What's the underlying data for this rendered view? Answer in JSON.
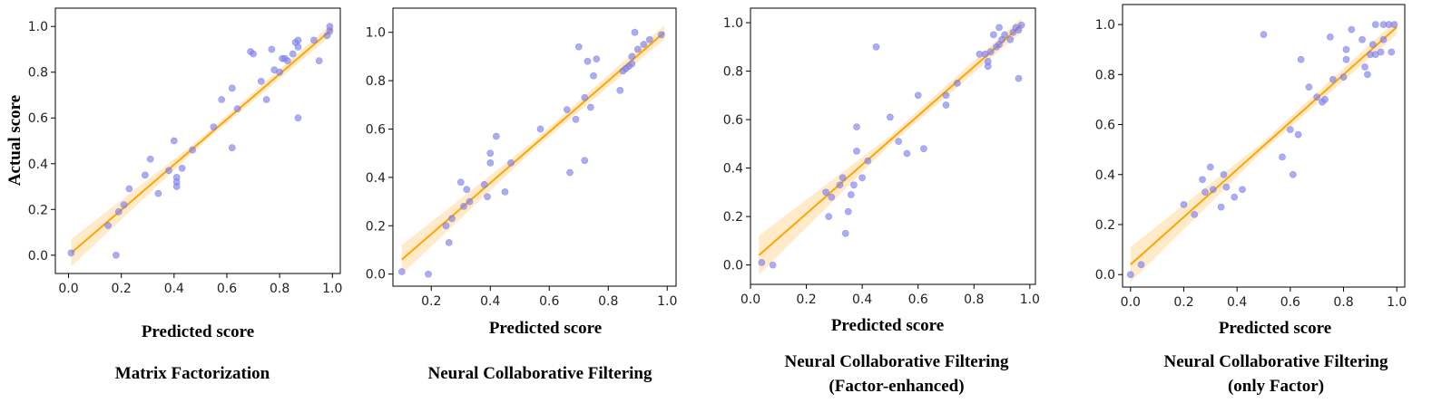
{
  "chart_data": [
    {
      "type": "scatter",
      "xlabel": "Predicted score",
      "ylabel": "Actual score",
      "caption": [
        "Matrix Factorization"
      ],
      "xlim": [
        -0.05,
        1.03
      ],
      "ylim": [
        -0.08,
        1.08
      ],
      "xticks": [
        "0.0",
        "0.2",
        "0.4",
        "0.6",
        "0.8",
        "1.0"
      ],
      "xtick_values": [
        0.0,
        0.2,
        0.4,
        0.6,
        0.8,
        1.0
      ],
      "yticks": [
        "0.0",
        "0.2",
        "0.4",
        "0.6",
        "0.8",
        "1.0"
      ],
      "ytick_values": [
        0.0,
        0.2,
        0.4,
        0.6,
        0.8,
        1.0
      ],
      "fit": {
        "x": [
          0.01,
          1.0
        ],
        "y": [
          0.01,
          0.99
        ],
        "band_low": 0.06,
        "band_high": 0.025
      },
      "points": [
        [
          0.01,
          0.01
        ],
        [
          0.15,
          0.13
        ],
        [
          0.18,
          0.0
        ],
        [
          0.19,
          0.19
        ],
        [
          0.21,
          0.22
        ],
        [
          0.23,
          0.29
        ],
        [
          0.29,
          0.35
        ],
        [
          0.31,
          0.42
        ],
        [
          0.34,
          0.27
        ],
        [
          0.38,
          0.37
        ],
        [
          0.4,
          0.5
        ],
        [
          0.41,
          0.34
        ],
        [
          0.41,
          0.32
        ],
        [
          0.41,
          0.3
        ],
        [
          0.43,
          0.38
        ],
        [
          0.47,
          0.46
        ],
        [
          0.55,
          0.56
        ],
        [
          0.58,
          0.68
        ],
        [
          0.62,
          0.73
        ],
        [
          0.62,
          0.47
        ],
        [
          0.64,
          0.64
        ],
        [
          0.69,
          0.89
        ],
        [
          0.7,
          0.88
        ],
        [
          0.73,
          0.76
        ],
        [
          0.75,
          0.68
        ],
        [
          0.77,
          0.9
        ],
        [
          0.78,
          0.81
        ],
        [
          0.8,
          0.8
        ],
        [
          0.81,
          0.86
        ],
        [
          0.82,
          0.86
        ],
        [
          0.83,
          0.85
        ],
        [
          0.85,
          0.88
        ],
        [
          0.86,
          0.93
        ],
        [
          0.87,
          0.94
        ],
        [
          0.87,
          0.91
        ],
        [
          0.87,
          0.6
        ],
        [
          0.93,
          0.94
        ],
        [
          0.95,
          0.85
        ],
        [
          0.98,
          0.96
        ],
        [
          0.99,
          0.98
        ],
        [
          0.99,
          1.0
        ]
      ]
    },
    {
      "type": "scatter",
      "xlabel": "Predicted score",
      "ylabel": "",
      "caption": [
        "Neural Collaborative Filtering"
      ],
      "xlim": [
        0.07,
        1.03
      ],
      "ylim": [
        -0.05,
        1.1
      ],
      "xticks": [
        "0.2",
        "0.4",
        "0.6",
        "0.8",
        "1.0"
      ],
      "xtick_values": [
        0.2,
        0.4,
        0.6,
        0.8,
        1.0
      ],
      "yticks": [
        "0.0",
        "0.2",
        "0.4",
        "0.6",
        "0.8",
        "1.0"
      ],
      "ytick_values": [
        0.0,
        0.2,
        0.4,
        0.6,
        0.8,
        1.0
      ],
      "fit": {
        "x": [
          0.1,
          0.99
        ],
        "y": [
          0.06,
          1.0
        ],
        "band_low": 0.06,
        "band_high": 0.03
      },
      "points": [
        [
          0.1,
          0.01
        ],
        [
          0.19,
          0.0
        ],
        [
          0.25,
          0.2
        ],
        [
          0.26,
          0.13
        ],
        [
          0.27,
          0.23
        ],
        [
          0.3,
          0.38
        ],
        [
          0.31,
          0.28
        ],
        [
          0.32,
          0.35
        ],
        [
          0.33,
          0.3
        ],
        [
          0.38,
          0.37
        ],
        [
          0.39,
          0.32
        ],
        [
          0.4,
          0.5
        ],
        [
          0.4,
          0.46
        ],
        [
          0.42,
          0.57
        ],
        [
          0.45,
          0.34
        ],
        [
          0.47,
          0.46
        ],
        [
          0.57,
          0.6
        ],
        [
          0.66,
          0.68
        ],
        [
          0.67,
          0.42
        ],
        [
          0.69,
          0.64
        ],
        [
          0.7,
          0.94
        ],
        [
          0.72,
          0.73
        ],
        [
          0.72,
          0.47
        ],
        [
          0.73,
          0.88
        ],
        [
          0.74,
          0.69
        ],
        [
          0.75,
          0.82
        ],
        [
          0.76,
          0.89
        ],
        [
          0.84,
          0.76
        ],
        [
          0.85,
          0.84
        ],
        [
          0.86,
          0.85
        ],
        [
          0.87,
          0.86
        ],
        [
          0.88,
          0.9
        ],
        [
          0.88,
          0.87
        ],
        [
          0.89,
          1.0
        ],
        [
          0.9,
          0.93
        ],
        [
          0.92,
          0.95
        ],
        [
          0.94,
          0.97
        ],
        [
          0.98,
          0.99
        ]
      ]
    },
    {
      "type": "scatter",
      "xlabel": "Predicted score",
      "ylabel": "",
      "caption": [
        "Neural Collaborative Filtering",
        "(Factor-enhanced)"
      ],
      "xlim": [
        0.0,
        1.02
      ],
      "ylim": [
        -0.08,
        1.06
      ],
      "xticks": [
        "0.0",
        "0.2",
        "0.4",
        "0.6",
        "0.8",
        "1.0"
      ],
      "xtick_values": [
        0.0,
        0.2,
        0.4,
        0.6,
        0.8,
        1.0
      ],
      "yticks": [
        "0.0",
        "0.2",
        "0.4",
        "0.6",
        "0.8",
        "1.0"
      ],
      "ytick_values": [
        0.0,
        0.2,
        0.4,
        0.6,
        0.8,
        1.0
      ],
      "fit": {
        "x": [
          0.03,
          0.97
        ],
        "y": [
          0.04,
          0.99
        ],
        "band_low": 0.08,
        "band_high": 0.03
      },
      "points": [
        [
          0.04,
          0.01
        ],
        [
          0.08,
          0.0
        ],
        [
          0.27,
          0.3
        ],
        [
          0.28,
          0.2
        ],
        [
          0.29,
          0.28
        ],
        [
          0.32,
          0.33
        ],
        [
          0.33,
          0.36
        ],
        [
          0.34,
          0.13
        ],
        [
          0.35,
          0.22
        ],
        [
          0.36,
          0.29
        ],
        [
          0.37,
          0.33
        ],
        [
          0.38,
          0.47
        ],
        [
          0.38,
          0.57
        ],
        [
          0.4,
          0.36
        ],
        [
          0.42,
          0.43
        ],
        [
          0.45,
          0.9
        ],
        [
          0.5,
          0.61
        ],
        [
          0.53,
          0.51
        ],
        [
          0.56,
          0.46
        ],
        [
          0.6,
          0.7
        ],
        [
          0.62,
          0.48
        ],
        [
          0.7,
          0.66
        ],
        [
          0.7,
          0.7
        ],
        [
          0.74,
          0.75
        ],
        [
          0.82,
          0.87
        ],
        [
          0.84,
          0.87
        ],
        [
          0.85,
          0.82
        ],
        [
          0.85,
          0.84
        ],
        [
          0.86,
          0.88
        ],
        [
          0.87,
          0.95
        ],
        [
          0.88,
          0.9
        ],
        [
          0.89,
          0.91
        ],
        [
          0.89,
          0.98
        ],
        [
          0.9,
          0.93
        ],
        [
          0.91,
          0.95
        ],
        [
          0.93,
          0.93
        ],
        [
          0.94,
          0.96
        ],
        [
          0.95,
          0.98
        ],
        [
          0.96,
          0.97
        ],
        [
          0.96,
          0.77
        ],
        [
          0.97,
          0.99
        ]
      ]
    },
    {
      "type": "scatter",
      "xlabel": "Predicted score",
      "ylabel": "",
      "caption": [
        "Neural Collaborative Filtering",
        "(only Factor)"
      ],
      "xlim": [
        -0.03,
        1.03
      ],
      "ylim": [
        -0.05,
        1.08
      ],
      "xticks": [
        "0.0",
        "0.2",
        "0.4",
        "0.6",
        "0.8",
        "1.0"
      ],
      "xtick_values": [
        0.0,
        0.2,
        0.4,
        0.6,
        0.8,
        1.0
      ],
      "yticks": [
        "0.0",
        "0.2",
        "0.4",
        "0.6",
        "0.8",
        "1.0"
      ],
      "ytick_values": [
        0.0,
        0.2,
        0.4,
        0.6,
        0.8,
        1.0
      ],
      "fit": {
        "x": [
          0.0,
          1.0
        ],
        "y": [
          0.04,
          0.99
        ],
        "band_low": 0.07,
        "band_high": 0.03
      },
      "points": [
        [
          0.0,
          0.0
        ],
        [
          0.04,
          0.04
        ],
        [
          0.2,
          0.28
        ],
        [
          0.24,
          0.24
        ],
        [
          0.27,
          0.38
        ],
        [
          0.28,
          0.33
        ],
        [
          0.3,
          0.43
        ],
        [
          0.31,
          0.34
        ],
        [
          0.34,
          0.27
        ],
        [
          0.35,
          0.4
        ],
        [
          0.36,
          0.35
        ],
        [
          0.39,
          0.31
        ],
        [
          0.42,
          0.34
        ],
        [
          0.5,
          0.96
        ],
        [
          0.57,
          0.47
        ],
        [
          0.6,
          0.58
        ],
        [
          0.61,
          0.4
        ],
        [
          0.63,
          0.56
        ],
        [
          0.64,
          0.86
        ],
        [
          0.67,
          0.75
        ],
        [
          0.7,
          0.71
        ],
        [
          0.72,
          0.69
        ],
        [
          0.73,
          0.7
        ],
        [
          0.75,
          0.95
        ],
        [
          0.76,
          0.78
        ],
        [
          0.8,
          0.79
        ],
        [
          0.81,
          0.86
        ],
        [
          0.81,
          0.9
        ],
        [
          0.83,
          0.98
        ],
        [
          0.87,
          0.94
        ],
        [
          0.88,
          0.83
        ],
        [
          0.89,
          0.8
        ],
        [
          0.9,
          0.88
        ],
        [
          0.91,
          0.92
        ],
        [
          0.92,
          0.88
        ],
        [
          0.92,
          1.0
        ],
        [
          0.94,
          0.89
        ],
        [
          0.95,
          0.94
        ],
        [
          0.95,
          1.0
        ],
        [
          0.97,
          1.0
        ],
        [
          0.98,
          0.89
        ],
        [
          0.99,
          1.0
        ]
      ]
    }
  ],
  "colors": {
    "point": "#8080f0",
    "point_stroke": "#6a6ae0",
    "fit_line": "#ffa500",
    "band": "#ffe6c0",
    "axis": "#000000"
  }
}
